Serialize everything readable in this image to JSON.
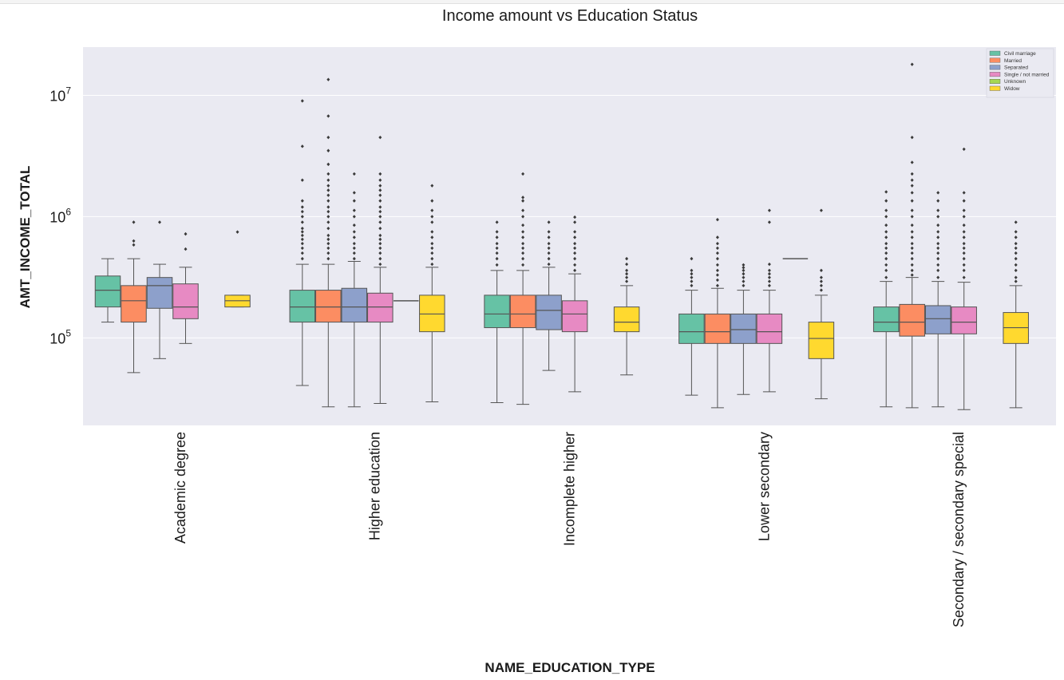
{
  "chart_data": {
    "type": "boxplot",
    "title": "Income amount vs Education Status",
    "xlabel": "NAME_EDUCATION_TYPE",
    "ylabel": "AMT_INCOME_TOTAL",
    "yscale": "log",
    "ylim": [
      19000,
      25000000
    ],
    "yticks": [
      {
        "value": 100000,
        "label": "10",
        "exp": "5"
      },
      {
        "value": 1000000,
        "label": "10",
        "exp": "6"
      },
      {
        "value": 10000000,
        "label": "10",
        "exp": "7"
      }
    ],
    "grid": true,
    "legend_position": "top-right",
    "categories": [
      "Academic degree",
      "Higher education",
      "Incomplete higher",
      "Lower secondary",
      "Secondary / secondary special"
    ],
    "series": [
      {
        "name": "Civil marriage",
        "color": "#66c2a5",
        "boxes": [
          {
            "whislo": 135000,
            "q1": 180000,
            "med": 247500,
            "q3": 324000,
            "whishi": 450000,
            "fliers": []
          },
          {
            "whislo": 40500,
            "q1": 135000,
            "med": 180000,
            "q3": 247500,
            "whishi": 405000,
            "fliers": [
              450000,
              500000,
              550000,
              600000,
              650000,
              700000,
              750000,
              800000,
              900000,
              1000000,
              1100000,
              1200000,
              1350000,
              2000000,
              3800000,
              9000000
            ]
          },
          {
            "whislo": 29250,
            "q1": 121500,
            "med": 157500,
            "q3": 225000,
            "whishi": 360000,
            "fliers": [
              400000,
              450000,
              500000,
              550000,
              600000,
              675000,
              750000,
              900000
            ]
          },
          {
            "whislo": 33750,
            "q1": 90000,
            "med": 112500,
            "q3": 157500,
            "whishi": 247500,
            "fliers": [
              270000,
              292500,
              315000,
              337500,
              360000,
              450000
            ]
          },
          {
            "whislo": 27000,
            "q1": 112500,
            "med": 135000,
            "q3": 180000,
            "whishi": 292500,
            "fliers": [
              315000,
              360000,
              400000,
              450000,
              500000,
              550000,
              600000,
              675000,
              750000,
              850000,
              1000000,
              1125000,
              1350000,
              1600000
            ]
          }
        ]
      },
      {
        "name": "Married",
        "color": "#fc8d62",
        "boxes": [
          {
            "whislo": 51750,
            "q1": 135000,
            "med": 202500,
            "q3": 270000,
            "whishi": 450000,
            "fliers": [
              585000,
              630000,
              900000
            ]
          },
          {
            "whislo": 27000,
            "q1": 135000,
            "med": 180000,
            "q3": 247500,
            "whishi": 405000,
            "fliers": [
              450000,
              500000,
              550000,
              600000,
              650000,
              700000,
              800000,
              900000,
              1000000,
              1100000,
              1200000,
              1350000,
              1500000,
              1650000,
              1800000,
              2000000,
              2250000,
              2700000,
              3500000,
              4500000,
              6750000,
              13500000
            ]
          },
          {
            "whislo": 28350,
            "q1": 121500,
            "med": 157500,
            "q3": 225000,
            "whishi": 360000,
            "fliers": [
              400000,
              450000,
              500000,
              550000,
              600000,
              675000,
              750000,
              850000,
              1000000,
              1125000,
              1350000,
              1440000,
              2250000
            ]
          },
          {
            "whislo": 26550,
            "q1": 90000,
            "med": 112500,
            "q3": 157500,
            "whishi": 256500,
            "fliers": [
              270000,
              300000,
              330000,
              360000,
              400000,
              450000,
              500000,
              550000,
              600000,
              675000,
              945000
            ]
          },
          {
            "whislo": 26550,
            "q1": 103500,
            "med": 135000,
            "q3": 189000,
            "whishi": 315000,
            "fliers": [
              330000,
              360000,
              400000,
              450000,
              500000,
              550000,
              600000,
              675000,
              750000,
              850000,
              1000000,
              1125000,
              1350000,
              1575000,
              1800000,
              2000000,
              2250000,
              2800000,
              4500000,
              18000000
            ]
          }
        ]
      },
      {
        "name": "Separated",
        "color": "#8da0cb",
        "boxes": [
          {
            "whislo": 67500,
            "q1": 175500,
            "med": 270000,
            "q3": 315000,
            "whishi": 405000,
            "fliers": [
              900000
            ]
          },
          {
            "whislo": 27000,
            "q1": 135000,
            "med": 180000,
            "q3": 256500,
            "whishi": 427500,
            "fliers": [
              450000,
              500000,
              550000,
              600000,
              675000,
              750000,
              850000,
              1000000,
              1125000,
              1350000,
              1575000,
              2250000
            ]
          },
          {
            "whislo": 54000,
            "q1": 117000,
            "med": 168750,
            "q3": 225000,
            "whishi": 382500,
            "fliers": [
              405000,
              450000,
              500000,
              550000,
              600000,
              675000,
              750000,
              900000
            ]
          },
          {
            "whislo": 34200,
            "q1": 90000,
            "med": 117000,
            "q3": 157500,
            "whishi": 247500,
            "fliers": [
              270000,
              292500,
              315000,
              337500,
              360000,
              380000,
              400000
            ]
          },
          {
            "whislo": 27000,
            "q1": 108000,
            "med": 144000,
            "q3": 184500,
            "whishi": 292500,
            "fliers": [
              315000,
              360000,
              400000,
              450000,
              500000,
              550000,
              600000,
              675000,
              750000,
              850000,
              1000000,
              1125000,
              1350000,
              1575000
            ]
          }
        ]
      },
      {
        "name": "Single / not married",
        "color": "#e78ac3",
        "boxes": [
          {
            "whislo": 90000,
            "q1": 144000,
            "med": 180000,
            "q3": 279000,
            "whishi": 382500,
            "fliers": [
              540000,
              720000
            ]
          },
          {
            "whislo": 28800,
            "q1": 135000,
            "med": 180000,
            "q3": 234000,
            "whishi": 382500,
            "fliers": [
              405000,
              450000,
              500000,
              550000,
              600000,
              650000,
              700000,
              800000,
              900000,
              1000000,
              1100000,
              1200000,
              1350000,
              1500000,
              1650000,
              1800000,
              2000000,
              2250000,
              4500000
            ]
          },
          {
            "whislo": 36000,
            "q1": 112500,
            "med": 157500,
            "q3": 202500,
            "whishi": 337500,
            "fliers": [
              360000,
              400000,
              450000,
              500000,
              550000,
              600000,
              675000,
              750000,
              900000,
              990000
            ]
          },
          {
            "whislo": 36000,
            "q1": 90000,
            "med": 112500,
            "q3": 157500,
            "whishi": 247500,
            "fliers": [
              270000,
              292500,
              315000,
              337500,
              360000,
              405000,
              900000,
              1125000
            ]
          },
          {
            "whislo": 25650,
            "q1": 108000,
            "med": 135000,
            "q3": 180000,
            "whishi": 288000,
            "fliers": [
              315000,
              360000,
              400000,
              450000,
              500000,
              550000,
              600000,
              675000,
              750000,
              850000,
              1000000,
              1125000,
              1350000,
              1575000,
              3600000
            ]
          }
        ]
      },
      {
        "name": "Unknown",
        "color": "#a6d854",
        "boxes": [
          null,
          {
            "whislo": 202500,
            "q1": 202500,
            "med": 202500,
            "q3": 202500,
            "whishi": 202500,
            "fliers": []
          },
          null,
          {
            "whislo": 450000,
            "q1": 450000,
            "med": 450000,
            "q3": 450000,
            "whishi": 450000,
            "fliers": []
          },
          null
        ]
      },
      {
        "name": "Widow",
        "color": "#ffd92f",
        "boxes": [
          {
            "whislo": 180000,
            "q1": 180000,
            "med": 202500,
            "q3": 225000,
            "whishi": 225000,
            "fliers": [
              747000
            ]
          },
          {
            "whislo": 29700,
            "q1": 112500,
            "med": 157500,
            "q3": 225000,
            "whishi": 382500,
            "fliers": [
              405000,
              450000,
              500000,
              550000,
              600000,
              675000,
              750000,
              900000,
              1000000,
              1125000,
              1350000,
              1800000
            ]
          },
          {
            "whislo": 49500,
            "q1": 112500,
            "med": 135000,
            "q3": 180000,
            "whishi": 270000,
            "fliers": [
              292500,
              315000,
              337500,
              360000,
              405000,
              450000
            ]
          },
          {
            "whislo": 31500,
            "q1": 67500,
            "med": 99000,
            "q3": 135000,
            "whishi": 225000,
            "fliers": [
              247500,
              270000,
              292500,
              315000,
              360000,
              1125000
            ]
          },
          {
            "whislo": 26550,
            "q1": 90000,
            "med": 121500,
            "q3": 162000,
            "whishi": 270000,
            "fliers": [
              292500,
              315000,
              360000,
              400000,
              450000,
              500000,
              550000,
              600000,
              675000,
              750000,
              900000
            ]
          }
        ]
      }
    ]
  }
}
